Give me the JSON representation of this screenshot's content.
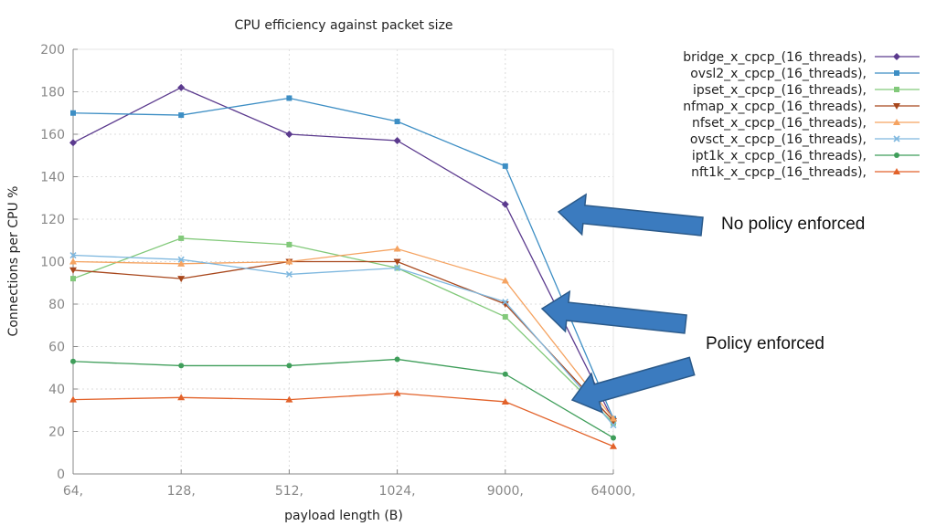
{
  "chart_data": {
    "type": "line",
    "title": "CPU efficiency against packet size",
    "xlabel": "payload length (B)",
    "ylabel": "Connections per CPU %",
    "categories": [
      "64,",
      "128,",
      "512,",
      "1024,",
      "9000,",
      "64000,"
    ],
    "ylim": [
      0,
      200
    ],
    "yticks": [
      0,
      20,
      40,
      60,
      80,
      100,
      120,
      140,
      160,
      180,
      200
    ],
    "grid": true,
    "legend_position": "top-right",
    "series": [
      {
        "name": "bridge_x_cpcp_(16_threads),",
        "color": "#5b3a8e",
        "marker": "diamond",
        "values": [
          156,
          182,
          160,
          157,
          127,
          25
        ]
      },
      {
        "name": "ovsl2_x_cpcp_(16_threads),",
        "color": "#3d8ec4",
        "marker": "square",
        "values": [
          170,
          169,
          177,
          166,
          145,
          26
        ]
      },
      {
        "name": "ipset_x_cpcp_(16_threads),",
        "color": "#82c97a",
        "marker": "square",
        "values": [
          92,
          111,
          108,
          97,
          74,
          24
        ]
      },
      {
        "name": "nfmap_x_cpcp_(16_threads),",
        "color": "#a8471c",
        "marker": "triangle-down",
        "values": [
          96,
          92,
          100,
          100,
          80,
          25
        ]
      },
      {
        "name": "nfset_x_cpcp_(16_threads),",
        "color": "#f5a361",
        "marker": "triangle",
        "values": [
          100,
          99,
          100,
          106,
          91,
          26
        ]
      },
      {
        "name": "ovsct_x_cpcp_(16_threads),",
        "color": "#7fb8df",
        "marker": "x",
        "values": [
          103,
          101,
          94,
          97,
          81,
          23
        ]
      },
      {
        "name": "ipt1k_x_cpcp_(16_threads),",
        "color": "#3f9e5a",
        "marker": "circle",
        "values": [
          53,
          51,
          51,
          54,
          47,
          17
        ]
      },
      {
        "name": "nft1k_x_cpcp_(16_threads),",
        "color": "#e2622a",
        "marker": "triangle",
        "values": [
          35,
          36,
          35,
          38,
          34,
          13
        ]
      }
    ],
    "annotations": [
      {
        "text": "No policy enforced"
      },
      {
        "text": "Policy enforced"
      }
    ],
    "arrow_color": "#3b7bbf"
  }
}
